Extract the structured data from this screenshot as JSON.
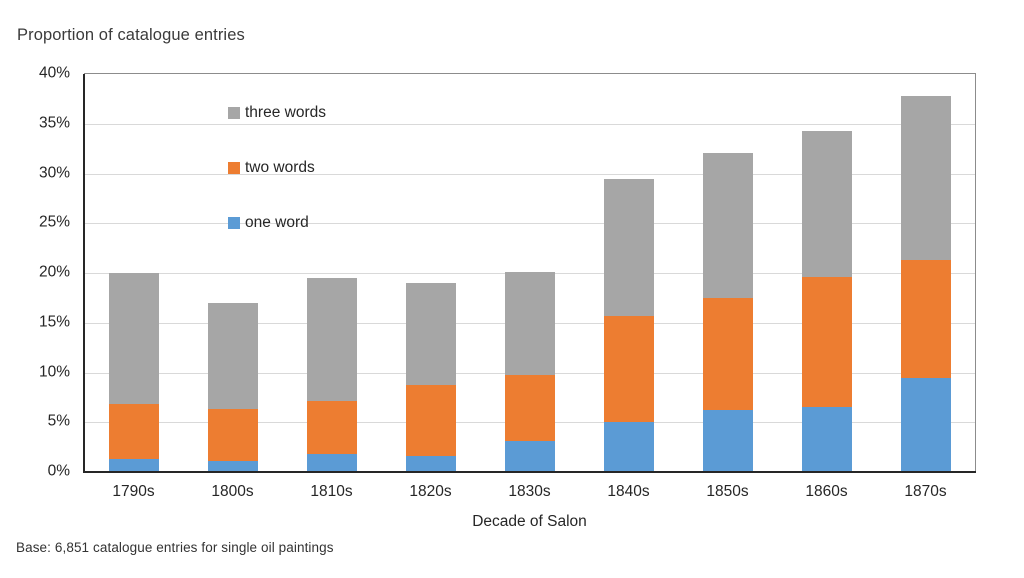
{
  "chart_data": {
    "type": "bar",
    "stacked": true,
    "title": "Proportion of catalogue entries",
    "xlabel": "Decade of Salon",
    "note": "Base: 6,851 catalogue entries for single oil paintings",
    "categories": [
      "1790s",
      "1800s",
      "1810s",
      "1820s",
      "1830s",
      "1840s",
      "1850s",
      "1860s",
      "1870s"
    ],
    "series": [
      {
        "name": "one word",
        "color": "#5B9BD5",
        "values": [
          1.3,
          1.1,
          1.8,
          1.6,
          3.1,
          5.0,
          6.2,
          6.5,
          9.4
        ]
      },
      {
        "name": "two words",
        "color": "#ED7D31",
        "values": [
          5.5,
          5.2,
          5.3,
          7.1,
          6.7,
          10.7,
          11.3,
          13.1,
          11.9
        ]
      },
      {
        "name": "three words",
        "color": "#A6A6A6",
        "values": [
          13.2,
          10.7,
          12.4,
          10.3,
          10.3,
          13.7,
          14.6,
          14.7,
          16.5
        ]
      }
    ],
    "stack_totals": [
      20.0,
      17.0,
      19.5,
      19.0,
      20.1,
      29.4,
      32.1,
      34.3,
      37.8
    ],
    "ylim": [
      0,
      40
    ],
    "ytick_step": 5,
    "yticks": [
      "0%",
      "5%",
      "10%",
      "15%",
      "20%",
      "25%",
      "30%",
      "35%",
      "40%"
    ],
    "grid": true,
    "legend": {
      "position": "inside-top-left",
      "items": [
        {
          "label": "three words",
          "color": "#A6A6A6"
        },
        {
          "label": "two words",
          "color": "#ED7D31"
        },
        {
          "label": "one word",
          "color": "#5B9BD5"
        }
      ]
    },
    "style_colors": {
      "grid": "#D9D9D9",
      "axis": "#262626",
      "plot_border": "#8C8C8C",
      "text": "#262626"
    }
  }
}
